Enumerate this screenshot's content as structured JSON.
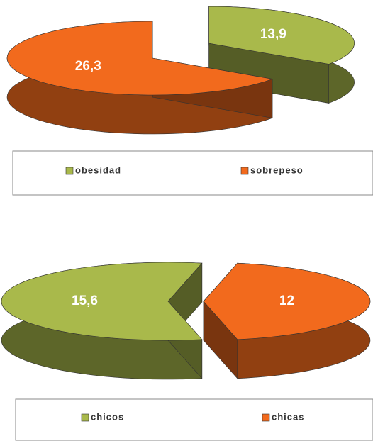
{
  "chart_data": [
    {
      "type": "pie",
      "categories": [
        "obesidad",
        "sobrepeso"
      ],
      "values": [
        13.9,
        26.3
      ],
      "value_labels": [
        "13,9",
        "26,3"
      ],
      "colors": [
        "#a9b94b",
        "#f26a1d"
      ],
      "legend": "bottom"
    },
    {
      "type": "pie",
      "categories": [
        "chicos",
        "chicas"
      ],
      "values": [
        15.6,
        12
      ],
      "value_labels": [
        "15,6",
        "12"
      ],
      "colors": [
        "#a9b94b",
        "#f26a1d"
      ],
      "legend": "bottom"
    }
  ]
}
